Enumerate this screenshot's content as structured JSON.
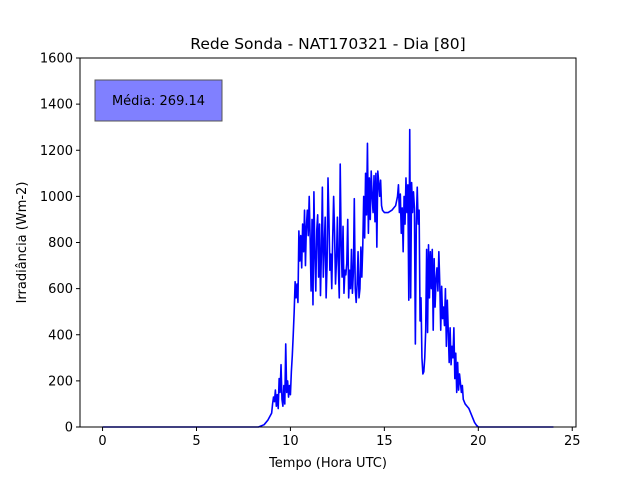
{
  "chart_data": {
    "type": "line",
    "title": "Rede Sonda - NAT170321 - Dia [80]",
    "xlabel": "Tempo (Hora UTC)",
    "ylabel": "Irradiância (Wm-2)",
    "xlim": [
      -1.2,
      25.2
    ],
    "ylim": [
      0,
      1600
    ],
    "xticks": [
      0,
      5,
      10,
      15,
      20,
      25
    ],
    "yticks": [
      0,
      200,
      400,
      600,
      800,
      1000,
      1200,
      1400,
      1600
    ],
    "grid": false,
    "annotation": {
      "text": "Média: 269.14",
      "color": "#8080ff",
      "placement": "top-left"
    },
    "series": [
      {
        "color": "#0000ff",
        "points": [
          [
            0,
            0
          ],
          [
            5,
            0
          ],
          [
            8.3,
            0
          ],
          [
            8.6,
            10
          ],
          [
            8.8,
            30
          ],
          [
            9.0,
            60
          ],
          [
            9.05,
            100
          ],
          [
            9.1,
            130
          ],
          [
            9.15,
            110
          ],
          [
            9.2,
            160
          ],
          [
            9.25,
            90
          ],
          [
            9.3,
            140
          ],
          [
            9.35,
            80
          ],
          [
            9.4,
            210
          ],
          [
            9.45,
            150
          ],
          [
            9.5,
            270
          ],
          [
            9.55,
            120
          ],
          [
            9.6,
            90
          ],
          [
            9.65,
            180
          ],
          [
            9.7,
            100
          ],
          [
            9.75,
            360
          ],
          [
            9.8,
            150
          ],
          [
            9.85,
            200
          ],
          [
            9.9,
            130
          ],
          [
            9.95,
            180
          ],
          [
            10.0,
            140
          ],
          [
            10.05,
            240
          ],
          [
            10.1,
            310
          ],
          [
            10.15,
            400
          ],
          [
            10.2,
            500
          ],
          [
            10.25,
            630
          ],
          [
            10.3,
            560
          ],
          [
            10.35,
            620
          ],
          [
            10.4,
            540
          ],
          [
            10.45,
            850
          ],
          [
            10.5,
            720
          ],
          [
            10.55,
            830
          ],
          [
            10.6,
            690
          ],
          [
            10.65,
            880
          ],
          [
            10.7,
            760
          ],
          [
            10.75,
            940
          ],
          [
            10.8,
            700
          ],
          [
            10.85,
            870
          ],
          [
            10.9,
            940
          ],
          [
            10.95,
            830
          ],
          [
            11.0,
            1000
          ],
          [
            11.05,
            820
          ],
          [
            11.1,
            590
          ],
          [
            11.15,
            900
          ],
          [
            11.2,
            530
          ],
          [
            11.25,
            1020
          ],
          [
            11.3,
            750
          ],
          [
            11.35,
            590
          ],
          [
            11.4,
            850
          ],
          [
            11.45,
            920
          ],
          [
            11.5,
            650
          ],
          [
            11.55,
            880
          ],
          [
            11.6,
            570
          ],
          [
            11.65,
            760
          ],
          [
            11.7,
            1040
          ],
          [
            11.75,
            650
          ],
          [
            11.8,
            780
          ],
          [
            11.85,
            910
          ],
          [
            11.9,
            560
          ],
          [
            11.95,
            700
          ],
          [
            12.0,
            1080
          ],
          [
            12.05,
            900
          ],
          [
            12.1,
            680
          ],
          [
            12.15,
            750
          ],
          [
            12.2,
            600
          ],
          [
            12.25,
            820
          ],
          [
            12.3,
            1000
          ],
          [
            12.35,
            840
          ],
          [
            12.4,
            620
          ],
          [
            12.45,
            720
          ],
          [
            12.5,
            910
          ],
          [
            12.55,
            700
          ],
          [
            12.6,
            560
          ],
          [
            12.65,
            1140
          ],
          [
            12.7,
            800
          ],
          [
            12.75,
            650
          ],
          [
            12.8,
            870
          ],
          [
            12.85,
            580
          ],
          [
            12.9,
            680
          ],
          [
            12.95,
            660
          ],
          [
            13.0,
            710
          ],
          [
            13.05,
            900
          ],
          [
            13.1,
            560
          ],
          [
            13.15,
            680
          ],
          [
            13.2,
            600
          ],
          [
            13.25,
            770
          ],
          [
            13.3,
            580
          ],
          [
            13.35,
            670
          ],
          [
            13.4,
            990
          ],
          [
            13.45,
            600
          ],
          [
            13.5,
            540
          ],
          [
            13.55,
            620
          ],
          [
            13.6,
            760
          ],
          [
            13.65,
            560
          ],
          [
            13.7,
            600
          ],
          [
            13.75,
            780
          ],
          [
            13.8,
            650
          ],
          [
            13.85,
            780
          ],
          [
            13.9,
            1000
          ],
          [
            13.95,
            820
          ],
          [
            14.0,
            1100
          ],
          [
            14.05,
            920
          ],
          [
            14.1,
            1230
          ],
          [
            14.15,
            840
          ],
          [
            14.2,
            1080
          ],
          [
            14.25,
            900
          ],
          [
            14.3,
            1110
          ],
          [
            14.35,
            1000
          ],
          [
            14.4,
            930
          ],
          [
            14.45,
            1090
          ],
          [
            14.5,
            890
          ],
          [
            14.55,
            1100
          ],
          [
            14.6,
            780
          ],
          [
            14.65,
            1110
          ],
          [
            14.7,
            1060
          ],
          [
            14.75,
            1000
          ],
          [
            14.8,
            1070
          ],
          [
            14.85,
            960
          ],
          [
            14.9,
            940
          ],
          [
            15.0,
            930
          ],
          [
            15.2,
            930
          ],
          [
            15.4,
            940
          ],
          [
            15.6,
            960
          ],
          [
            15.7,
            1000
          ],
          [
            15.75,
            1050
          ],
          [
            15.8,
            930
          ],
          [
            15.85,
            1010
          ],
          [
            15.9,
            840
          ],
          [
            15.95,
            950
          ],
          [
            16.0,
            760
          ],
          [
            16.05,
            1000
          ],
          [
            16.1,
            880
          ],
          [
            16.15,
            1080
          ],
          [
            16.2,
            930
          ],
          [
            16.25,
            1050
          ],
          [
            16.3,
            550
          ],
          [
            16.35,
            1290
          ],
          [
            16.4,
            560
          ],
          [
            16.45,
            1060
          ],
          [
            16.5,
            930
          ],
          [
            16.55,
            1020
          ],
          [
            16.6,
            950
          ],
          [
            16.65,
            360
          ],
          [
            16.7,
            880
          ],
          [
            16.75,
            1040
          ],
          [
            16.8,
            880
          ],
          [
            16.85,
            940
          ],
          [
            16.9,
            460
          ],
          [
            16.95,
            560
          ],
          [
            17.0,
            300
          ],
          [
            17.05,
            230
          ],
          [
            17.1,
            240
          ],
          [
            17.15,
            300
          ],
          [
            17.2,
            420
          ],
          [
            17.25,
            770
          ],
          [
            17.3,
            410
          ],
          [
            17.35,
            790
          ],
          [
            17.4,
            560
          ],
          [
            17.45,
            760
          ],
          [
            17.5,
            600
          ],
          [
            17.55,
            770
          ],
          [
            17.6,
            420
          ],
          [
            17.65,
            730
          ],
          [
            17.7,
            520
          ],
          [
            17.75,
            640
          ],
          [
            17.8,
            690
          ],
          [
            17.85,
            590
          ],
          [
            17.9,
            760
          ],
          [
            17.95,
            620
          ],
          [
            18.0,
            420
          ],
          [
            18.05,
            610
          ],
          [
            18.1,
            470
          ],
          [
            18.15,
            520
          ],
          [
            18.2,
            440
          ],
          [
            18.25,
            600
          ],
          [
            18.3,
            350
          ],
          [
            18.35,
            550
          ],
          [
            18.4,
            420
          ],
          [
            18.45,
            280
          ],
          [
            18.5,
            430
          ],
          [
            18.55,
            270
          ],
          [
            18.6,
            350
          ],
          [
            18.65,
            300
          ],
          [
            18.7,
            430
          ],
          [
            18.75,
            210
          ],
          [
            18.8,
            320
          ],
          [
            18.85,
            150
          ],
          [
            18.9,
            280
          ],
          [
            18.95,
            160
          ],
          [
            19.0,
            230
          ],
          [
            19.05,
            190
          ],
          [
            19.1,
            150
          ],
          [
            19.15,
            180
          ],
          [
            19.2,
            120
          ],
          [
            19.3,
            100
          ],
          [
            19.4,
            90
          ],
          [
            19.5,
            80
          ],
          [
            19.6,
            60
          ],
          [
            19.7,
            40
          ],
          [
            19.8,
            20
          ],
          [
            19.9,
            8
          ],
          [
            20.0,
            0
          ],
          [
            22,
            0
          ],
          [
            24,
            0
          ]
        ]
      }
    ]
  }
}
